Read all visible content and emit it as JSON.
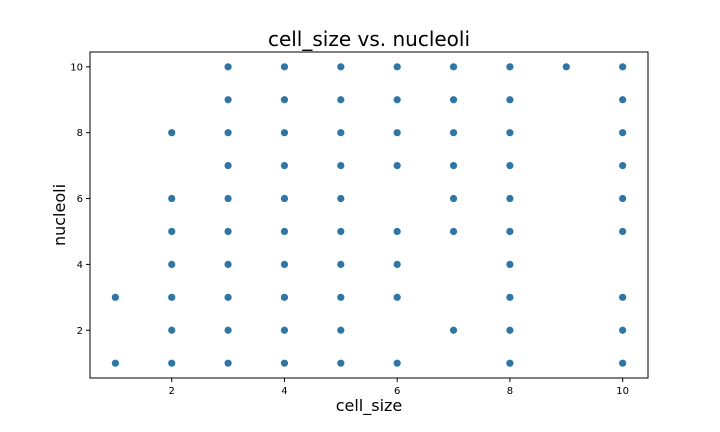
{
  "chart_data": {
    "type": "scatter",
    "title": "cell_size vs. nucleoli",
    "xlabel": "cell_size",
    "ylabel": "nucleoli",
    "xlim": [
      0.55,
      10.45
    ],
    "ylim": [
      0.55,
      10.45
    ],
    "xticks": [
      2,
      4,
      6,
      8,
      10
    ],
    "yticks": [
      2,
      4,
      6,
      8,
      10
    ],
    "grid": false,
    "marker_color": "#2f76a6",
    "series": [
      {
        "points": [
          [
            1,
            1
          ],
          [
            1,
            3
          ],
          [
            2,
            1
          ],
          [
            2,
            2
          ],
          [
            2,
            3
          ],
          [
            2,
            4
          ],
          [
            2,
            5
          ],
          [
            2,
            6
          ],
          [
            2,
            8
          ],
          [
            3,
            1
          ],
          [
            3,
            2
          ],
          [
            3,
            3
          ],
          [
            3,
            4
          ],
          [
            3,
            5
          ],
          [
            3,
            6
          ],
          [
            3,
            7
          ],
          [
            3,
            8
          ],
          [
            3,
            9
          ],
          [
            3,
            10
          ],
          [
            4,
            1
          ],
          [
            4,
            2
          ],
          [
            4,
            3
          ],
          [
            4,
            4
          ],
          [
            4,
            5
          ],
          [
            4,
            6
          ],
          [
            4,
            7
          ],
          [
            4,
            8
          ],
          [
            4,
            9
          ],
          [
            4,
            10
          ],
          [
            5,
            1
          ],
          [
            5,
            2
          ],
          [
            5,
            3
          ],
          [
            5,
            4
          ],
          [
            5,
            5
          ],
          [
            5,
            6
          ],
          [
            5,
            7
          ],
          [
            5,
            8
          ],
          [
            5,
            9
          ],
          [
            5,
            10
          ],
          [
            6,
            1
          ],
          [
            6,
            3
          ],
          [
            6,
            4
          ],
          [
            6,
            5
          ],
          [
            6,
            7
          ],
          [
            6,
            8
          ],
          [
            6,
            9
          ],
          [
            6,
            10
          ],
          [
            7,
            2
          ],
          [
            7,
            5
          ],
          [
            7,
            6
          ],
          [
            7,
            7
          ],
          [
            7,
            8
          ],
          [
            7,
            9
          ],
          [
            7,
            10
          ],
          [
            8,
            1
          ],
          [
            8,
            2
          ],
          [
            8,
            3
          ],
          [
            8,
            4
          ],
          [
            8,
            5
          ],
          [
            8,
            6
          ],
          [
            8,
            7
          ],
          [
            8,
            8
          ],
          [
            8,
            9
          ],
          [
            8,
            10
          ],
          [
            9,
            10
          ],
          [
            10,
            1
          ],
          [
            10,
            2
          ],
          [
            10,
            3
          ],
          [
            10,
            5
          ],
          [
            10,
            6
          ],
          [
            10,
            7
          ],
          [
            10,
            8
          ],
          [
            10,
            9
          ],
          [
            10,
            10
          ]
        ]
      }
    ]
  }
}
